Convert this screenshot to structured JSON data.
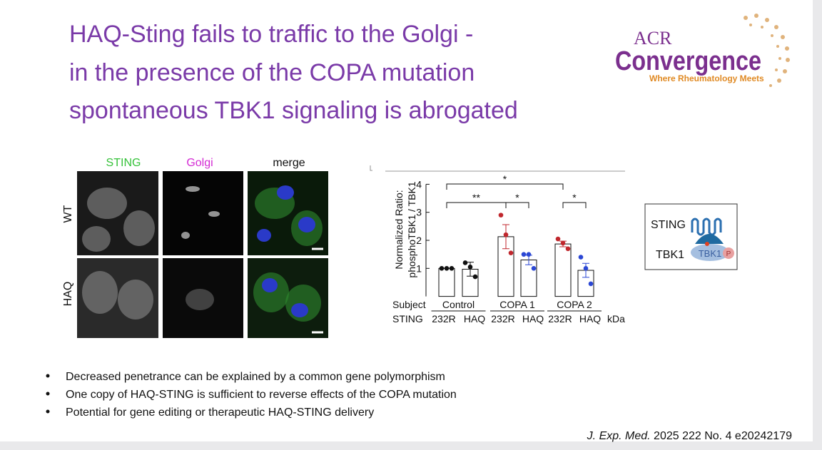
{
  "title": [
    "HAQ-Sting fails to traffic to the Golgi -",
    "in the presence of the COPA mutation",
    "spontaneous TBK1 signaling is abrogated"
  ],
  "logo": {
    "top": "ACR",
    "main": "Convergence",
    "tagline": "Where Rheumatology Meets"
  },
  "micrographs": {
    "columns": [
      "STING",
      "Golgi",
      "merge"
    ],
    "rows": [
      "WT",
      "HAQ"
    ]
  },
  "diagram": {
    "labels": [
      "STING",
      "TBK1"
    ],
    "kinase": "TBK1",
    "phospho": "P"
  },
  "bullets": [
    "Decreased penetrance can be explained by a common gene polymorphism",
    "One copy of HAQ-STING is sufficient to reverse effects of the COPA mutation",
    "Potential for gene editing or therapeutic HAQ-STING delivery"
  ],
  "citation": {
    "journal": "J. Exp. Med.",
    "rest": "2025 222 No. 4 e20242179"
  },
  "chart_data": {
    "type": "bar",
    "y_label": [
      "Normalized Ratio:",
      "phosphoTBK1 / TBK1"
    ],
    "row_labels": [
      "Subject",
      "STING"
    ],
    "groups": [
      "Control",
      "COPA 1",
      "COPA 2"
    ],
    "unit_label": "kDa",
    "categories": [
      "232R",
      "HAQ",
      "232R",
      "HAQ",
      "232R",
      "HAQ"
    ],
    "values": [
      1.0,
      0.97,
      2.13,
      1.3,
      1.87,
      0.93
    ],
    "errors": [
      0.0,
      0.25,
      0.43,
      0.17,
      0.1,
      0.25
    ],
    "points": [
      [
        1.0,
        1.0,
        1.0
      ],
      [
        1.2,
        1.05,
        0.7
      ],
      [
        2.9,
        2.2,
        1.55
      ],
      [
        1.5,
        1.5,
        1.0
      ],
      [
        2.05,
        1.9,
        1.7
      ],
      [
        1.4,
        1.0,
        0.45
      ]
    ],
    "point_colors": [
      "#111111",
      "#111111",
      "#c0272d",
      "#2b47d4",
      "#c0272d",
      "#2b47d4"
    ],
    "significance": [
      "*",
      "**",
      "*",
      "*"
    ],
    "ylim": [
      0,
      4
    ],
    "yticks": [
      1,
      2,
      3,
      4
    ]
  }
}
